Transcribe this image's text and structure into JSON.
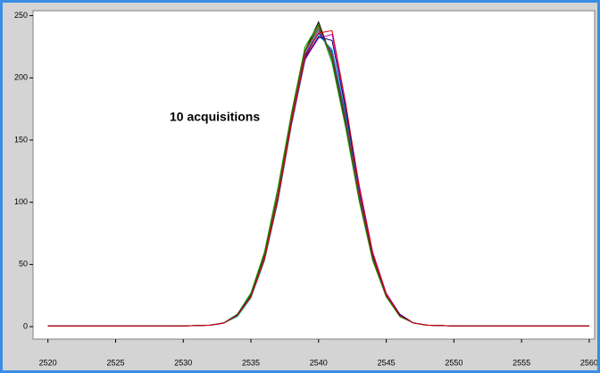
{
  "chart_data": {
    "type": "line",
    "annotation": "10 acquisitions",
    "x": [
      2520,
      2525,
      2530,
      2532,
      2533,
      2534,
      2535,
      2536,
      2537,
      2538,
      2539,
      2540,
      2541,
      2542,
      2543,
      2544,
      2545,
      2546,
      2547,
      2548,
      2550,
      2555,
      2560
    ],
    "series": [
      {
        "color": "#000000",
        "values": [
          0.5,
          0.5,
          0.6,
          1.2,
          3,
          9,
          26,
          58,
          108,
          170,
          222,
          245,
          215,
          162,
          103,
          54,
          24,
          9,
          3,
          1.2,
          0.6,
          0.5,
          0.5
        ]
      },
      {
        "color": "#00a000",
        "values": [
          0.5,
          0.5,
          0.6,
          1.1,
          3,
          10,
          27,
          60,
          112,
          172,
          225,
          243,
          212,
          160,
          101,
          53,
          24,
          8,
          3,
          1.1,
          0.6,
          0.5,
          0.5
        ]
      },
      {
        "color": "#0000e0",
        "values": [
          0.5,
          0.5,
          0.6,
          1.2,
          2.8,
          9,
          24,
          55,
          104,
          165,
          218,
          236,
          221,
          170,
          108,
          57,
          26,
          9,
          3,
          1.2,
          0.6,
          0.5,
          0.5
        ]
      },
      {
        "color": "#00c0c0",
        "values": [
          0.5,
          0.5,
          0.6,
          1.3,
          3,
          8,
          23,
          53,
          101,
          162,
          214,
          234,
          223,
          172,
          110,
          58,
          26,
          10,
          3,
          1.3,
          0.6,
          0.5,
          0.5
        ]
      },
      {
        "color": "#d000d0",
        "values": [
          0.5,
          0.5,
          0.6,
          1.2,
          3,
          9,
          25,
          54,
          103,
          163,
          215,
          232,
          235,
          178,
          114,
          60,
          27,
          10,
          3,
          1.2,
          0.6,
          0.5,
          0.5
        ]
      },
      {
        "color": "#006000",
        "values": [
          0.5,
          0.5,
          0.6,
          1.2,
          3,
          10,
          26,
          57,
          107,
          168,
          221,
          240,
          218,
          166,
          105,
          55,
          25,
          9,
          3,
          1.2,
          0.6,
          0.5,
          0.5
        ]
      },
      {
        "color": "#7030a0",
        "values": [
          0.5,
          0.5,
          0.6,
          1.2,
          3,
          9,
          25,
          56,
          106,
          167,
          219,
          238,
          220,
          168,
          107,
          56,
          25,
          9,
          3,
          1.2,
          0.6,
          0.5,
          0.5
        ]
      },
      {
        "color": "#804000",
        "values": [
          0.5,
          0.5,
          0.6,
          1.1,
          3,
          9,
          25,
          57,
          108,
          169,
          222,
          242,
          216,
          164,
          104,
          55,
          25,
          9,
          3,
          1.1,
          0.6,
          0.5,
          0.5
        ]
      },
      {
        "color": "#000080",
        "values": [
          0.5,
          0.5,
          0.6,
          1.2,
          3,
          9,
          24,
          54,
          102,
          164,
          216,
          233,
          230,
          175,
          111,
          58,
          26,
          10,
          3,
          1.2,
          0.6,
          0.5,
          0.5
        ]
      },
      {
        "color": "#e00000",
        "values": [
          0.5,
          0.5,
          0.6,
          1.2,
          3,
          9,
          24,
          54,
          103,
          164,
          217,
          236,
          238,
          180,
          112,
          59,
          26,
          9,
          3,
          1.2,
          0.6,
          0.5,
          0.5
        ]
      }
    ],
    "xlim": [
      2518.9,
      2560.4
    ],
    "ylim": [
      -10,
      254
    ],
    "xticks": [
      2520,
      2525,
      2530,
      2535,
      2540,
      2545,
      2550,
      2555,
      2560
    ],
    "yticks": [
      0,
      50,
      100,
      150,
      200,
      250
    ]
  }
}
